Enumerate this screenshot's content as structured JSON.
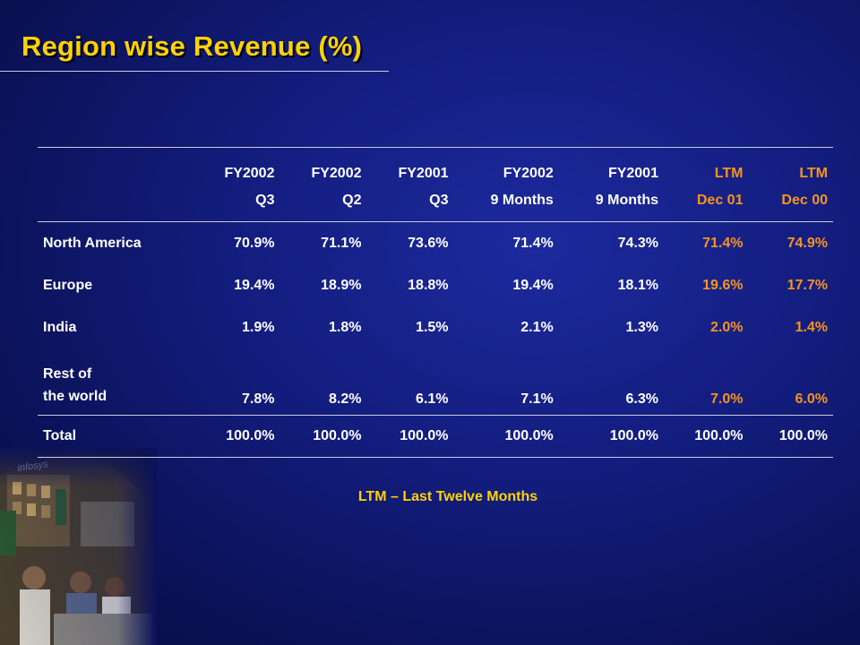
{
  "slide": {
    "title": "Region wise Revenue (%)",
    "footnote": "LTM – Last Twelve Months",
    "colors": {
      "title": "#ffd200",
      "ltm_columns": "#f7941d",
      "text": "#ffffff",
      "background": "#131d7e"
    }
  },
  "photo": {
    "logo_text": "infosys"
  },
  "table": {
    "columns": [
      {
        "line1": "FY2002",
        "line2": "Q3"
      },
      {
        "line1": "FY2002",
        "line2": "Q2"
      },
      {
        "line1": "FY2001",
        "line2": "Q3"
      },
      {
        "line1": "FY2002",
        "line2": "9 Months"
      },
      {
        "line1": "FY2001",
        "line2": "9 Months"
      },
      {
        "line1": "LTM",
        "line2": "Dec 01"
      },
      {
        "line1": "LTM",
        "line2": "Dec 00"
      }
    ],
    "rows": [
      {
        "label": "North America",
        "values": [
          "70.9%",
          "71.1%",
          "73.6%",
          "71.4%",
          "74.3%",
          "71.4%",
          "74.9%"
        ]
      },
      {
        "label": "Europe",
        "values": [
          "19.4%",
          "18.9%",
          "18.8%",
          "19.4%",
          "18.1%",
          "19.6%",
          "17.7%"
        ]
      },
      {
        "label": "India",
        "values": [
          "1.9%",
          "1.8%",
          "1.5%",
          "2.1%",
          "1.3%",
          "2.0%",
          "1.4%"
        ]
      },
      {
        "label_line1": "Rest of",
        "label_line2": "the world",
        "values": [
          "7.8%",
          "8.2%",
          "6.1%",
          "7.1%",
          "6.3%",
          "7.0%",
          "6.0%"
        ]
      },
      {
        "label": "Total",
        "values": [
          "100.0%",
          "100.0%",
          "100.0%",
          "100.0%",
          "100.0%",
          "100.0%",
          "100.0%"
        ]
      }
    ]
  }
}
